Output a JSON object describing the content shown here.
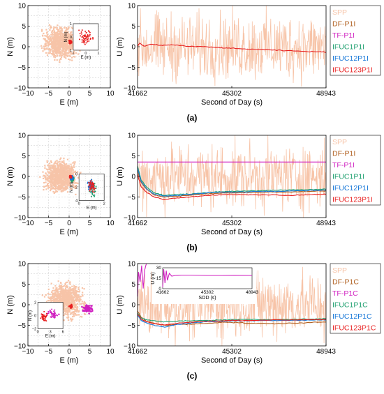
{
  "colors": {
    "SPP": "#f7c4a8",
    "DF": "#b06020",
    "TF": "#d020c0",
    "F1": "#20a070",
    "F12": "#1878d8",
    "F123": "#e82020"
  },
  "chart_data": [
    {
      "id": "a",
      "caption": "(a)",
      "en": {
        "type": "scatter",
        "xlabel": "E (m)",
        "ylabel": "N (m)",
        "xlim": [
          -10,
          10
        ],
        "ylim": [
          -10,
          10
        ],
        "xticks": [
          "−10",
          "−5",
          "0",
          "5",
          "10"
        ],
        "yticks": [
          "10",
          "5",
          "0",
          "−5",
          "−10"
        ],
        "grid": true,
        "spp_cloud": {
          "cx": -2,
          "cy": 1,
          "rx": 5.5,
          "ry": 5,
          "n": 900
        },
        "clusters": [
          {
            "color": "F123",
            "cx": 0.3,
            "cy": 1.2,
            "rx": 0.4,
            "ry": 0.6,
            "n": 40
          }
        ],
        "inset": {
          "xlabel": "E (m)",
          "ylabel": "N (m)",
          "xticks": [
            "1",
            "0",
            "1"
          ],
          "yticks": [
            "1",
            "0",
            "1"
          ],
          "grid": false,
          "clusters": [
            {
              "color": "F123",
              "cx": 0.5,
              "cy": 0.5,
              "rx": 0.35,
              "ry": 0.35,
              "n": 60
            }
          ]
        }
      },
      "u": {
        "type": "line",
        "xlabel": "Second of Day (s)",
        "ylabel": "U (m)",
        "xlim": [
          41662,
          48943
        ],
        "ylim": [
          -10,
          10
        ],
        "xticks": [
          "41662",
          "45302",
          "48943"
        ],
        "yticks": [
          "10",
          "5",
          "0",
          "−5",
          "−10"
        ],
        "spp_amplitude": 9.5,
        "series": [
          {
            "color": "F123",
            "x": [
              41662,
              41750,
              41900,
              42200,
              42600,
              43000,
              43600,
              44200,
              44800,
              45302,
              46000,
              46800,
              47600,
              48400,
              48943
            ],
            "y": [
              0.2,
              0.9,
              0.1,
              0.6,
              0.3,
              0.5,
              0.1,
              0.0,
              -0.2,
              -0.4,
              -0.6,
              -0.8,
              -1.0,
              -1.2,
              -1.3
            ]
          }
        ],
        "flat_lines": []
      },
      "legend": [
        "SPP",
        "DF-P1I",
        "TF-P1I",
        "IFUC1P1I",
        "IFUC12P1I",
        "IFUC123P1I"
      ]
    },
    {
      "id": "b",
      "caption": "(b)",
      "en": {
        "type": "scatter",
        "xlabel": "E (m)",
        "ylabel": "N (m)",
        "xlim": [
          -10,
          10
        ],
        "ylim": [
          -10,
          10
        ],
        "xticks": [
          "−10",
          "−5",
          "0",
          "5",
          "10"
        ],
        "yticks": [
          "10",
          "5",
          "0",
          "−5",
          "−10"
        ],
        "grid": true,
        "spp_cloud": {
          "cx": -2,
          "cy": 0,
          "rx": 5.5,
          "ry": 5,
          "n": 900
        },
        "clusters": [
          {
            "color": "F1",
            "cx": 0.8,
            "cy": -0.6,
            "rx": 0.5,
            "ry": 0.8,
            "n": 30
          },
          {
            "color": "F12",
            "cx": 0.6,
            "cy": -0.3,
            "rx": 0.5,
            "ry": 0.6,
            "n": 30
          },
          {
            "color": "F123",
            "cx": 0.4,
            "cy": -0.1,
            "rx": 0.4,
            "ry": 0.5,
            "n": 30
          }
        ],
        "inset": {
          "xlabel": "E (m)",
          "ylabel": "N (m)",
          "xticks": [
            "0",
            "2"
          ],
          "yticks": [
            "0",
            "2",
            "4"
          ],
          "grid": true,
          "clusters": [
            {
              "color": "F1",
              "cx": 0.55,
              "cy": 0.55,
              "rx": 0.2,
              "ry": 0.35,
              "n": 40
            },
            {
              "color": "F12",
              "cx": 0.45,
              "cy": 0.45,
              "rx": 0.2,
              "ry": 0.3,
              "n": 40
            },
            {
              "color": "F123",
              "cx": 0.5,
              "cy": 0.5,
              "rx": 0.2,
              "ry": 0.3,
              "n": 40
            }
          ]
        }
      },
      "u": {
        "type": "line",
        "xlabel": "Second of Day (s)",
        "ylabel": "U (m)",
        "xlim": [
          41662,
          48943
        ],
        "ylim": [
          -10,
          10
        ],
        "xticks": [
          "41662",
          "45302",
          "48943"
        ],
        "yticks": [
          "10",
          "5",
          "0",
          "−5",
          "−10"
        ],
        "spp_amplitude": 9.5,
        "series": [
          {
            "color": "DF",
            "x": [
              41662,
              41800,
              42000,
              42300,
              42700,
              43200,
              43800,
              44400,
              45000,
              45302,
              46000,
              46800,
              47600,
              48400,
              48943
            ],
            "y": [
              1.5,
              -1.5,
              -3.0,
              -4.5,
              -5.0,
              -4.8,
              -4.5,
              -4.2,
              -4.0,
              -4.0,
              -3.9,
              -3.8,
              -3.8,
              -3.6,
              -3.5
            ]
          },
          {
            "color": "F1",
            "x": [
              41662,
              41800,
              42000,
              42300,
              42700,
              43200,
              43800,
              44400,
              45000,
              45302,
              46000,
              46800,
              47600,
              48400,
              48943
            ],
            "y": [
              2.5,
              -0.8,
              -2.5,
              -4.0,
              -4.6,
              -4.4,
              -4.2,
              -3.9,
              -3.7,
              -3.6,
              -3.5,
              -3.4,
              -3.3,
              -3.2,
              -3.1
            ]
          },
          {
            "color": "F12",
            "x": [
              41662,
              41800,
              42000,
              42300,
              42700,
              43200,
              43800,
              44400,
              45000,
              45302,
              46000,
              46800,
              47600,
              48400,
              48943
            ],
            "y": [
              2.0,
              -1.2,
              -2.9,
              -4.3,
              -4.8,
              -4.6,
              -4.3,
              -4.0,
              -3.8,
              -3.8,
              -3.7,
              -3.6,
              -3.5,
              -3.4,
              -3.3
            ]
          },
          {
            "color": "F123",
            "x": [
              41662,
              41800,
              42000,
              42300,
              42700,
              43200,
              43800,
              44400,
              45000,
              45302,
              46000,
              46800,
              47600,
              48400,
              48943
            ],
            "y": [
              0.5,
              -2.5,
              -3.8,
              -5.0,
              -5.6,
              -5.2,
              -4.9,
              -4.6,
              -4.4,
              -4.4,
              -4.5,
              -4.5,
              -4.6,
              -4.4,
              -4.3
            ]
          }
        ],
        "flat_lines": [
          {
            "color": "TF",
            "y": 3.5
          }
        ]
      },
      "legend": [
        "SPP",
        "DF-P1I",
        "TF-P1I",
        "IFUC1P1I",
        "IFUC12P1I",
        "IFUC123P1I"
      ]
    },
    {
      "id": "c",
      "caption": "(c)",
      "en": {
        "type": "scatter",
        "xlabel": "E (m)",
        "ylabel": "N (m)",
        "xlim": [
          -10,
          10
        ],
        "ylim": [
          -10,
          10
        ],
        "xticks": [
          "−10",
          "−5",
          "0",
          "5",
          "10"
        ],
        "yticks": [
          "10",
          "5",
          "0",
          "−5",
          "−10"
        ],
        "grid": true,
        "spp_cloud": {
          "cx": -1,
          "cy": 1,
          "rx": 6,
          "ry": 5.5,
          "n": 900
        },
        "clusters": [
          {
            "color": "TF",
            "cx": 4.5,
            "cy": -1.0,
            "rx": 1.8,
            "ry": 1.2,
            "n": 70
          },
          {
            "color": "F123",
            "cx": 0.4,
            "cy": -0.4,
            "rx": 0.4,
            "ry": 0.5,
            "n": 25
          }
        ],
        "inset": {
          "xlabel": "E (m)",
          "ylabel": "N (m)",
          "xticks": [
            "0",
            "3",
            "6"
          ],
          "yticks": [
            "2",
            "0",
            "−2"
          ],
          "grid": false,
          "clusters": [
            {
              "color": "TF",
              "cx": 0.6,
              "cy": 0.45,
              "rx": 0.3,
              "ry": 0.25,
              "n": 45
            },
            {
              "color": "F123",
              "cx": 0.25,
              "cy": 0.55,
              "rx": 0.15,
              "ry": 0.25,
              "n": 35
            }
          ]
        }
      },
      "u": {
        "type": "line",
        "xlabel": "Second of Day (s)",
        "ylabel": "U (m)",
        "xlim": [
          41662,
          48943
        ],
        "ylim": [
          -10,
          10
        ],
        "xticks": [
          "41662",
          "45302",
          "48943"
        ],
        "yticks": [
          "10",
          "5",
          "0",
          "−5",
          "−10"
        ],
        "spp_amplitude": 9.5,
        "series": [
          {
            "color": "DF",
            "x": [
              41662,
              41800,
              42000,
              42300,
              42700,
              43200,
              43800,
              44400,
              45000,
              45302,
              46000,
              46800,
              47600,
              48400,
              48943
            ],
            "y": [
              -1.5,
              -3.0,
              -4.0,
              -4.5,
              -5.0,
              -4.8,
              -4.7,
              -4.5,
              -4.2,
              -4.3,
              -4.5,
              -4.6,
              -4.5,
              -4.3,
              -4.2
            ]
          },
          {
            "color": "F1",
            "x": [
              41662,
              41800,
              42000,
              42300,
              42700,
              43200,
              43800,
              44400,
              45000,
              45302,
              46000,
              46800,
              47600,
              48400,
              48943
            ],
            "y": [
              -2.0,
              -3.2,
              -3.6,
              -3.9,
              -4.2,
              -4.0,
              -3.9,
              -3.8,
              -3.7,
              -3.6,
              -3.6,
              -3.6,
              -3.5,
              -3.5,
              -3.4
            ]
          },
          {
            "color": "F12",
            "x": [
              41662,
              41800,
              42000,
              42300,
              42700,
              43200,
              43800,
              44400,
              45000,
              45302,
              46000,
              46800,
              47600,
              48400,
              48943
            ],
            "y": [
              -2.5,
              -3.8,
              -4.4,
              -5.0,
              -5.4,
              -4.8,
              -4.4,
              -4.1,
              -4.0,
              -3.9,
              -3.9,
              -3.8,
              -3.8,
              -3.7,
              -3.7
            ]
          },
          {
            "color": "F123",
            "x": [
              41662,
              41800,
              42000,
              42300,
              42700,
              43200,
              43800,
              44400,
              45000,
              45302,
              46000,
              46800,
              47600,
              48400,
              48943
            ],
            "y": [
              -2.2,
              -3.5,
              -4.1,
              -4.6,
              -4.9,
              -4.5,
              -4.2,
              -4.0,
              -3.9,
              -3.8,
              -3.8,
              -3.7,
              -3.7,
              -3.6,
              -3.6
            ]
          },
          {
            "color": "TF",
            "x": [
              41662,
              41700,
              41760,
              41820,
              41880,
              41940,
              42000
            ],
            "y": [
              2.0,
              8.0,
              5.5,
              9.5,
              4.0,
              8.5,
              10.0
            ]
          }
        ],
        "flat_lines": [],
        "inset": {
          "xlabel": "SOD (s)",
          "ylabel": "U (m)",
          "xlim": [
            41662,
            48943
          ],
          "ylim": [
            0,
            30
          ],
          "xticks": [
            "41662",
            "45302",
            "48943"
          ],
          "yticks": [
            "30",
            "15",
            "0"
          ],
          "series": [
            {
              "color": "TF",
              "x": [
                41662,
                41750,
                41850,
                41950,
                42050,
                42200,
                42400,
                42700,
                43200,
                44000,
                45302,
                46500,
                47500,
                48943
              ],
              "y": [
                2,
                28,
                8,
                26,
                12,
                22,
                18,
                19,
                19.5,
                19.5,
                19,
                19,
                19.2,
                19
              ]
            }
          ]
        }
      },
      "legend": [
        "SPP",
        "DF-P1C",
        "TF-P1C",
        "IFUC1P1C",
        "IFUC12P1C",
        "IFUC123P1C"
      ]
    }
  ]
}
